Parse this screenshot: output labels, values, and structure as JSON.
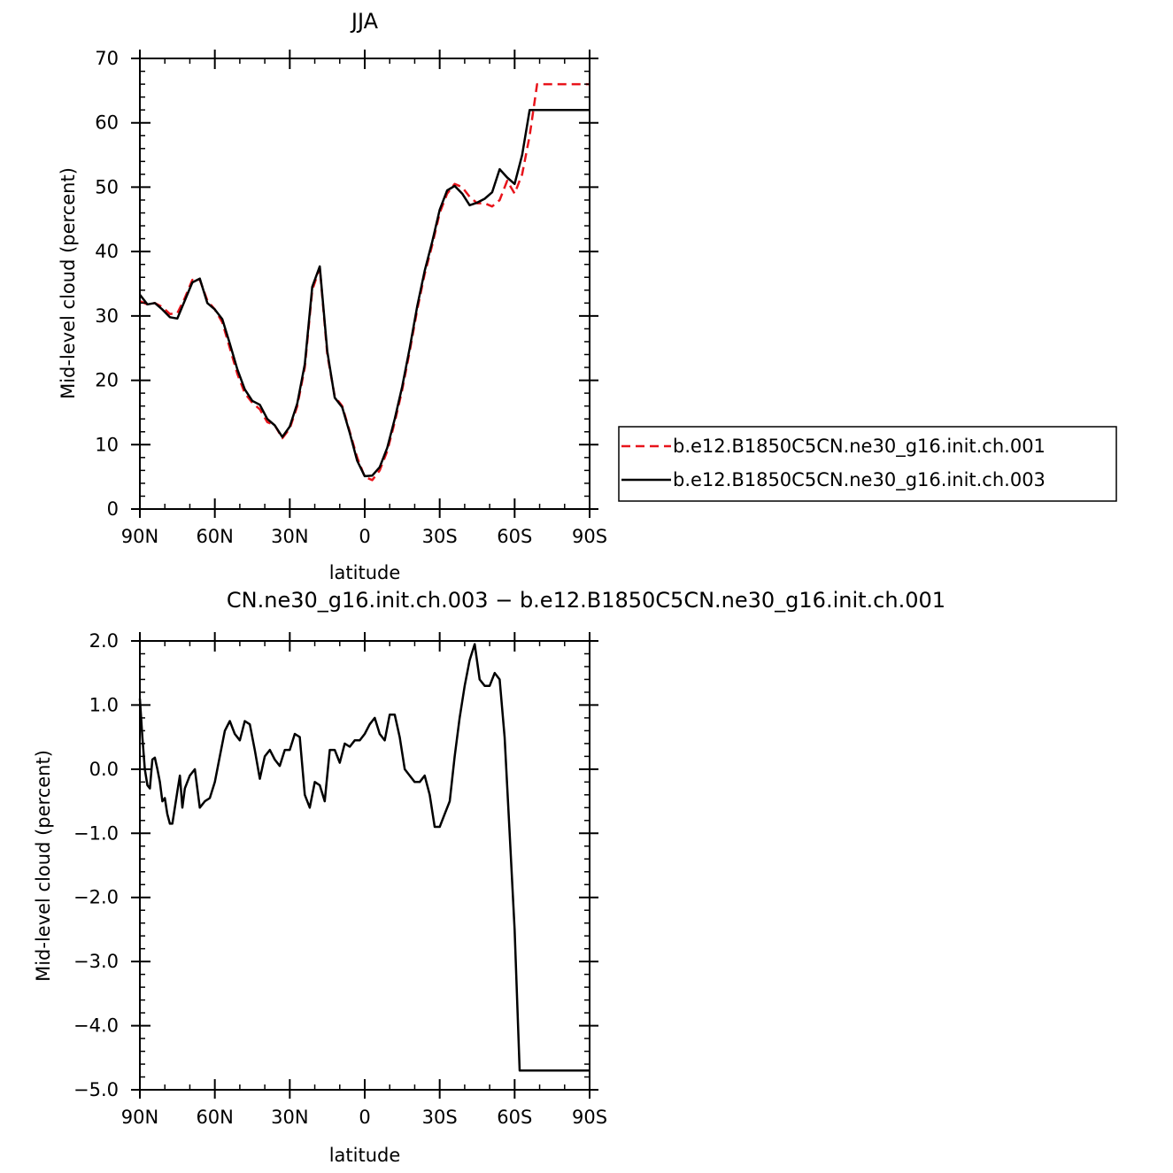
{
  "chart_data": [
    {
      "type": "line",
      "title": "JJA",
      "xlabel": "latitude",
      "ylabel": "Mid-level cloud (percent)",
      "x_tick_labels": [
        "90N",
        "60N",
        "30N",
        "0",
        "30S",
        "60S",
        "90S"
      ],
      "x_tick_values": [
        90,
        60,
        30,
        0,
        -30,
        -60,
        -90
      ],
      "xlim": [
        90,
        -90
      ],
      "ylim": [
        0,
        70
      ],
      "y_tick_labels": [
        "0",
        "10",
        "20",
        "30",
        "40",
        "50",
        "60",
        "70"
      ],
      "y_tick_values": [
        0,
        10,
        20,
        30,
        40,
        50,
        60,
        70
      ],
      "grid": false,
      "legend_position": "right",
      "x": [
        90,
        87,
        84,
        81,
        78,
        75,
        72,
        69,
        66,
        63,
        60,
        57,
        54,
        51,
        48,
        45,
        42,
        39,
        36,
        33,
        30,
        27,
        24,
        21,
        18,
        15,
        12,
        9,
        6,
        3,
        0,
        -3,
        -6,
        -9,
        -12,
        -15,
        -18,
        -21,
        -24,
        -27,
        -30,
        -33,
        -36,
        -39,
        -42,
        -45,
        -48,
        -51,
        -54,
        -57,
        -60,
        -63,
        -66,
        -69,
        -72,
        -75,
        -78,
        -81,
        -84,
        -87,
        -90
      ],
      "series": [
        {
          "name": "b.e12.B1850C5CN.ne30_g16.init.ch.001",
          "color": "#e8141b",
          "dash": true,
          "values": [
            32.3,
            31.8,
            32.0,
            31.4,
            30.3,
            30.4,
            32.8,
            35.6,
            35.6,
            32.4,
            31.0,
            29.0,
            25.0,
            21.0,
            18.0,
            16.5,
            15.5,
            13.5,
            13.0,
            11.0,
            12.5,
            16.0,
            22.0,
            34.0,
            37.5,
            24.0,
            17.5,
            16.0,
            12.0,
            8.0,
            5.0,
            4.5,
            6.0,
            9.0,
            13.5,
            18.5,
            24.5,
            31.0,
            36.5,
            41.0,
            46.0,
            49.0,
            50.5,
            50.0,
            48.5,
            47.5,
            47.5,
            47.0,
            48.0,
            51.0,
            49.0,
            52.0,
            58.0,
            66.0,
            66.0,
            66.0,
            66.0,
            66.0,
            66.0,
            66.0,
            66.0
          ]
        },
        {
          "name": "b.e12.B1850C5CN.ne30_g16.init.ch.003",
          "color": "#000000",
          "dash": false,
          "values": [
            33.3,
            31.8,
            32.0,
            31.0,
            29.8,
            29.6,
            32.4,
            35.2,
            35.8,
            32.0,
            31.0,
            29.5,
            25.7,
            21.7,
            18.6,
            16.8,
            16.2,
            14.0,
            13.0,
            11.2,
            12.8,
            16.4,
            22.5,
            34.5,
            37.7,
            24.5,
            17.3,
            15.8,
            11.8,
            7.5,
            5.1,
            5.2,
            6.5,
            9.5,
            14.0,
            19.0,
            25.0,
            31.5,
            37.0,
            41.5,
            46.5,
            49.5,
            50.2,
            49.0,
            47.2,
            47.6,
            48.2,
            49.2,
            52.8,
            51.5,
            50.5,
            55.0,
            62.0,
            62.0,
            62.0,
            62.0,
            62.0,
            62.0,
            62.0,
            62.0,
            62.0
          ]
        }
      ]
    },
    {
      "type": "line",
      "title": "CN.ne30_g16.init.ch.003 − b.e12.B1850C5CN.ne30_g16.init.ch.001",
      "xlabel": "latitude",
      "ylabel": "Mid-level cloud (percent)",
      "x_tick_labels": [
        "90N",
        "60N",
        "30N",
        "0",
        "30S",
        "60S",
        "90S"
      ],
      "x_tick_values": [
        90,
        60,
        30,
        0,
        -30,
        -60,
        -90
      ],
      "xlim": [
        90,
        -90
      ],
      "ylim": [
        -5,
        2
      ],
      "y_tick_labels": [
        "2.0",
        "1.0",
        "0.0",
        "−1.0",
        "−2.0",
        "−3.0",
        "−4.0",
        "−5.0"
      ],
      "y_tick_values": [
        2,
        1,
        0,
        -1,
        -2,
        -3,
        -4,
        -5
      ],
      "grid": false,
      "x": [
        90,
        89,
        88,
        87,
        86,
        85,
        84,
        83,
        82,
        81,
        80,
        79,
        78,
        77,
        76,
        75,
        74,
        73,
        72,
        70,
        68,
        66,
        64,
        62,
        60,
        58,
        56,
        54,
        52,
        50,
        48,
        46,
        44,
        42,
        40,
        38,
        36,
        34,
        32,
        30,
        28,
        26,
        24,
        22,
        20,
        18,
        16,
        14,
        12,
        10,
        8,
        6,
        4,
        2,
        0,
        -2,
        -4,
        -6,
        -8,
        -10,
        -12,
        -14,
        -16,
        -18,
        -20,
        -22,
        -24,
        -26,
        -28,
        -30,
        -32,
        -34,
        -36,
        -38,
        -40,
        -42,
        -44,
        -46,
        -48,
        -50,
        -52,
        -54,
        -56,
        -58,
        -60,
        -62,
        -64,
        -66,
        -68,
        -70,
        -72,
        -74,
        -76,
        -78,
        -80,
        -82,
        -84,
        -86,
        -88,
        -89,
        -90
      ],
      "series": [
        {
          "name": "",
          "color": "#000000",
          "dash": false,
          "values": [
            1.1,
            0.5,
            0.0,
            -0.25,
            -0.3,
            0.15,
            0.18,
            0.0,
            -0.2,
            -0.5,
            -0.45,
            -0.7,
            -0.85,
            -0.85,
            -0.6,
            -0.35,
            -0.1,
            -0.6,
            -0.3,
            -0.1,
            0.0,
            -0.6,
            -0.5,
            -0.45,
            -0.2,
            0.2,
            0.6,
            0.75,
            0.55,
            0.45,
            0.75,
            0.7,
            0.3,
            -0.15,
            0.2,
            0.3,
            0.15,
            0.05,
            0.3,
            0.3,
            0.55,
            0.5,
            -0.4,
            -0.6,
            -0.2,
            -0.25,
            -0.5,
            0.3,
            0.3,
            0.1,
            0.4,
            0.35,
            0.45,
            0.45,
            0.55,
            0.7,
            0.8,
            0.55,
            0.45,
            0.85,
            0.85,
            0.5,
            0.0,
            -0.1,
            -0.2,
            -0.2,
            -0.1,
            -0.4,
            -0.9,
            -0.9,
            -0.7,
            -0.5,
            0.2,
            0.8,
            1.3,
            1.7,
            1.95,
            1.4,
            1.3,
            1.3,
            1.5,
            1.4,
            0.5,
            -1.0,
            -2.5,
            -4.7,
            -4.7,
            -4.7,
            -4.7,
            -4.7,
            -4.7,
            -4.7,
            -4.7,
            -4.7,
            -4.7,
            -4.7,
            -4.7,
            -4.7,
            -4.7,
            -4.7,
            -4.7
          ]
        }
      ]
    }
  ]
}
